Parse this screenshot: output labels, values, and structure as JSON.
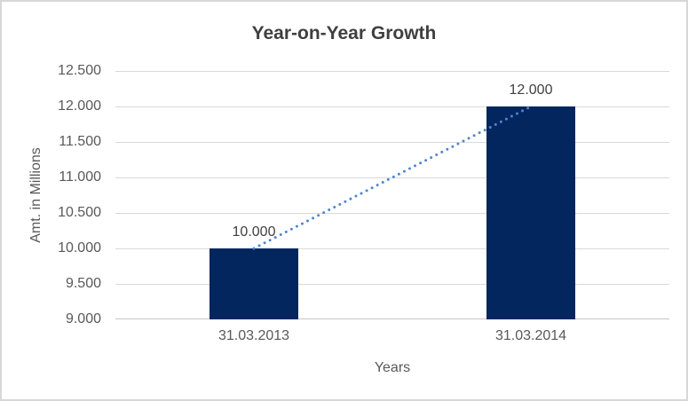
{
  "chart_data": {
    "type": "bar",
    "title": "Year-on-Year Growth",
    "xlabel": "Years",
    "ylabel": "Amt. in Millions",
    "categories": [
      "31.03.2013",
      "31.03.2014"
    ],
    "values": [
      10000,
      12000
    ],
    "data_labels": [
      "10.000",
      "12.000"
    ],
    "ylim": [
      9000,
      12500
    ],
    "y_ticks": [
      {
        "label": "12.500",
        "value": 12500
      },
      {
        "label": "12.000",
        "value": 12000
      },
      {
        "label": "11.500",
        "value": 11500
      },
      {
        "label": "11.000",
        "value": 11000
      },
      {
        "label": "10.500",
        "value": 10500
      },
      {
        "label": "10.000",
        "value": 10000
      },
      {
        "label": "9.500",
        "value": 9500
      },
      {
        "label": "9.000",
        "value": 9000
      }
    ],
    "grid": true,
    "legend_position": "none",
    "trendline": {
      "type": "linear",
      "style": "dotted",
      "connects": [
        10000,
        12000
      ]
    },
    "colors": {
      "bar": "#03265F",
      "trendline": "#4E86D2",
      "gridline": "#d9d9d9",
      "axis_line": "#c6c6c6",
      "title_text": "#3f3f3f",
      "axis_text": "#595959",
      "data_label_text": "#404040",
      "border": "#d7d7d7"
    }
  }
}
